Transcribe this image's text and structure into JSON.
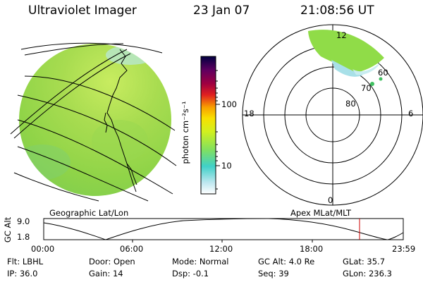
{
  "header": {
    "instrument": "Ultraviolet Imager",
    "date": "23 Jan 07",
    "time": "21:08:56 UT"
  },
  "colorbar": {
    "label": "photon cm⁻²s⁻¹",
    "ticks": [
      "100",
      "10"
    ]
  },
  "panels": {
    "left_caption": "Geographic Lat/Lon",
    "right_caption": "Apex MLat/MLT"
  },
  "polar_plot": {
    "mlt_labels": {
      "top": "12",
      "left": "18",
      "right": "6",
      "bottom": "0"
    },
    "mlat_labels": [
      "60",
      "70",
      "80"
    ]
  },
  "altitude_plot": {
    "ylabel": "GC Alt",
    "yticks": [
      "9.0",
      "1.8"
    ],
    "xticks": [
      "00:00",
      "06:00",
      "12:00",
      "18:00",
      "23:59"
    ]
  },
  "info": {
    "flt": "Flt: LBHL",
    "door": "Door: Open",
    "mode": "Mode: Normal",
    "gc_alt": "GC Alt: 4.0 Re",
    "glat": "GLat:  35.7",
    "ip": "IP: 36.0",
    "gain": "Gain: 14",
    "dsp": "Dsp:   -0.1",
    "seq": "Seq: 39",
    "glon": "GLon: 236.3"
  },
  "colors": {
    "disk_green": "#9fd84a",
    "aurora_green": "#8fe040",
    "marker_red": "#cc0000"
  }
}
